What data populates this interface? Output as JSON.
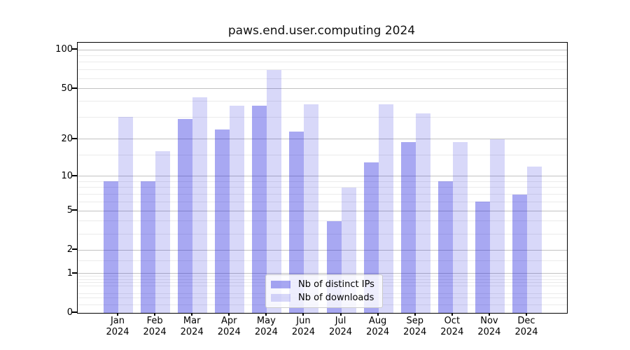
{
  "title": "paws.end.user.computing 2024",
  "chart_data": {
    "type": "bar",
    "title": "paws.end.user.computing 2024",
    "y_scale": "log1p",
    "grid": "major+minor",
    "legend_position": "lower center",
    "ylim": [
      0,
      113
    ],
    "yticks_major": [
      0,
      1,
      2,
      5,
      10,
      20,
      50,
      100
    ],
    "yticks_minor": [
      0.15,
      0.3,
      0.4,
      0.6,
      0.7,
      0.8,
      0.9,
      1.5,
      3,
      4,
      6,
      7,
      8,
      9,
      15,
      30,
      40,
      60,
      70,
      80,
      90
    ],
    "categories": [
      "Jan 2024",
      "Feb 2024",
      "Mar 2024",
      "Apr 2024",
      "May 2024",
      "Jun 2024",
      "Jul 2024",
      "Aug 2024",
      "Sep 2024",
      "Oct 2024",
      "Nov 2024",
      "Dec 2024"
    ],
    "series": [
      {
        "name": "Nb of distinct IPs",
        "key": "distinct-ips",
        "color": "#a8a8f0",
        "fill_rgba": "rgba(25,25,220,0.38)",
        "values": [
          9,
          9,
          29,
          24,
          37,
          23,
          4,
          13,
          19,
          9,
          6,
          7
        ]
      },
      {
        "name": "Nb of downloads",
        "key": "downloads",
        "color": "#d9d9f8",
        "fill_rgba": "rgba(25,25,220,0.17)",
        "values": [
          30,
          16,
          43,
          37,
          70,
          38,
          8,
          38,
          32,
          19,
          20,
          12
        ]
      }
    ]
  },
  "y_axis": {
    "ticks": [
      {
        "label": "100",
        "value": 100
      },
      {
        "label": "50",
        "value": 50
      },
      {
        "label": "20",
        "value": 20
      },
      {
        "label": "10",
        "value": 10
      },
      {
        "label": "5",
        "value": 5
      },
      {
        "label": "2",
        "value": 2
      },
      {
        "label": "1",
        "value": 1
      },
      {
        "label": "0",
        "value": 0
      }
    ]
  },
  "x_axis": {
    "labels": [
      {
        "month": "Jan",
        "year": "2024"
      },
      {
        "month": "Feb",
        "year": "2024"
      },
      {
        "month": "Mar",
        "year": "2024"
      },
      {
        "month": "Apr",
        "year": "2024"
      },
      {
        "month": "May",
        "year": "2024"
      },
      {
        "month": "Jun",
        "year": "2024"
      },
      {
        "month": "Jul",
        "year": "2024"
      },
      {
        "month": "Aug",
        "year": "2024"
      },
      {
        "month": "Sep",
        "year": "2024"
      },
      {
        "month": "Oct",
        "year": "2024"
      },
      {
        "month": "Nov",
        "year": "2024"
      },
      {
        "month": "Dec",
        "year": "2024"
      }
    ]
  },
  "legend": {
    "items": [
      {
        "label": "Nb of distinct IPs"
      },
      {
        "label": "Nb of downloads"
      }
    ]
  }
}
